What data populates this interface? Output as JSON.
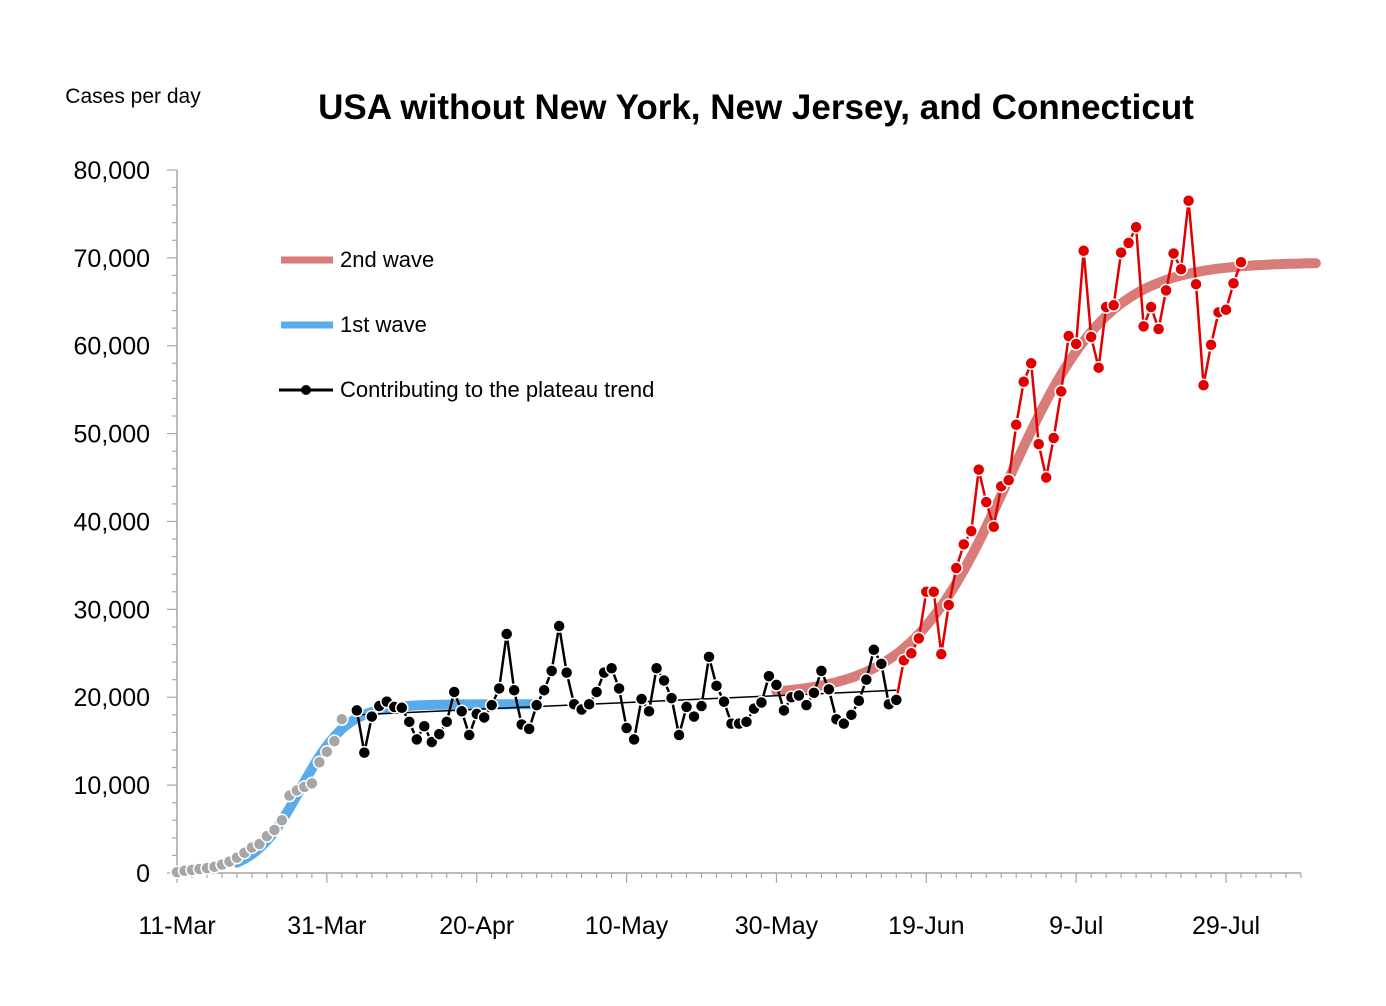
{
  "chart_data": {
    "type": "line",
    "title": "USA without New York, New Jersey, and Connecticut",
    "y_unit_label": "Cases per day",
    "xlabel": "",
    "ylabel": "Cases per day",
    "x_start_date": "11-Mar",
    "x_ticks": [
      "11-Mar",
      "31-Mar",
      "20-Apr",
      "10-May",
      "30-May",
      "19-Jun",
      "9-Jul",
      "29-Jul"
    ],
    "y_ticks": [
      "0",
      "10,000",
      "20,000",
      "30,000",
      "40,000",
      "50,000",
      "60,000",
      "70,000",
      "80,000"
    ],
    "ylim": [
      0,
      80000
    ],
    "x_range_days": [
      0,
      150
    ],
    "legend_position": "top-left",
    "legend": [
      {
        "label": "2nd wave",
        "color": "#d97b78"
      },
      {
        "label": "1st wave",
        "color": "#5aabec"
      },
      {
        "label": "Contributing to the plateau trend",
        "color": "#000000"
      }
    ],
    "colors": {
      "second_wave_fit": "#d97b78",
      "first_wave_fit": "#5aabec",
      "early_points": "#a6a6a6",
      "plateau_points": "#000000",
      "second_wave_points": "#e00000"
    },
    "series": [
      {
        "name": "early",
        "x": [
          0,
          1,
          2,
          3,
          4,
          5,
          6,
          7,
          8,
          9,
          10,
          11,
          12,
          13,
          14,
          15,
          16,
          17,
          18,
          19,
          20,
          21
        ],
        "values": [
          100,
          250,
          350,
          450,
          550,
          700,
          950,
          1300,
          1750,
          2300,
          2900,
          3300,
          4200,
          4900,
          6000,
          8800,
          9400,
          9800,
          10200,
          12600,
          13800,
          15000
        ]
      },
      {
        "name": "early-late",
        "x": [
          22
        ],
        "values": [
          17500
        ]
      },
      {
        "name": "plateau",
        "x": [
          24,
          25,
          26,
          27,
          28,
          29,
          30,
          31,
          32,
          33,
          34,
          35,
          36,
          37,
          38,
          39,
          40,
          41,
          42,
          43,
          44,
          45,
          46,
          47,
          48,
          49,
          50,
          51,
          52,
          53,
          54,
          55,
          56,
          57,
          58,
          59,
          60,
          61,
          62,
          63,
          64,
          65,
          66,
          67,
          68,
          69,
          70,
          71,
          72,
          73,
          74,
          75,
          76,
          77,
          78,
          79,
          80,
          81,
          82,
          83,
          84,
          85,
          86,
          87,
          88,
          89,
          90,
          91,
          92,
          93,
          94,
          95,
          96
        ],
        "values": [
          18500,
          13700,
          17800,
          19000,
          19500,
          18900,
          18800,
          17200,
          15200,
          16700,
          14900,
          15800,
          17200,
          20600,
          18400,
          15700,
          18100,
          17700,
          19100,
          21000,
          27200,
          20800,
          16900,
          16400,
          19100,
          20800,
          23000,
          28100,
          22800,
          19200,
          18600,
          19200,
          20600,
          22800,
          23300,
          21000,
          16500,
          15200,
          19800,
          18400,
          23300,
          21900,
          19900,
          15700,
          18900,
          17800,
          19000,
          24600,
          21300,
          19500,
          17000,
          17000,
          17200,
          18700,
          19400,
          22400,
          21400,
          18500,
          20000,
          20200,
          19100,
          20500,
          23000,
          20900,
          17500,
          17000,
          18000,
          19600,
          22000,
          25400,
          23800,
          19200,
          19700
        ]
      },
      {
        "name": "second-wave",
        "x": [
          97,
          98,
          99,
          100,
          101,
          102,
          103,
          104,
          105,
          106,
          107,
          108,
          109,
          110,
          111,
          112,
          113,
          114,
          115,
          116,
          117,
          118,
          119,
          120,
          121,
          122,
          123,
          124,
          125,
          126,
          127,
          128,
          129,
          130,
          131,
          132,
          133,
          134,
          135,
          136,
          137,
          138,
          139,
          140,
          141
        ],
        "values": [
          24200,
          25000,
          26700,
          32000,
          32000,
          24900,
          30500,
          34700,
          37400,
          38900,
          45900,
          42200,
          39400,
          44000,
          44700,
          51000,
          55900,
          58000,
          48800,
          45000,
          49500,
          54800,
          61100,
          60200,
          70800,
          61000,
          57500,
          64400,
          64600,
          70600,
          71700,
          73500,
          62200,
          64400,
          61900,
          66300,
          70500,
          68700,
          76500,
          67000,
          55500,
          60100,
          63800,
          64100,
          67100
        ]
      },
      {
        "name": "second-wave-last",
        "x": [
          142
        ],
        "values": [
          69500
        ]
      }
    ],
    "plateau_trend_line": {
      "x": [
        24,
        96
      ],
      "values": [
        18000,
        20800
      ]
    },
    "fit_first_wave": {
      "L": 19200,
      "k": 0.32,
      "x0": 16.5,
      "x_range": [
        8,
        48
      ]
    },
    "fit_second_wave": {
      "base": 20200,
      "L": 49300,
      "k": 0.15,
      "x0": 111,
      "x_range": [
        80,
        152
      ]
    }
  }
}
